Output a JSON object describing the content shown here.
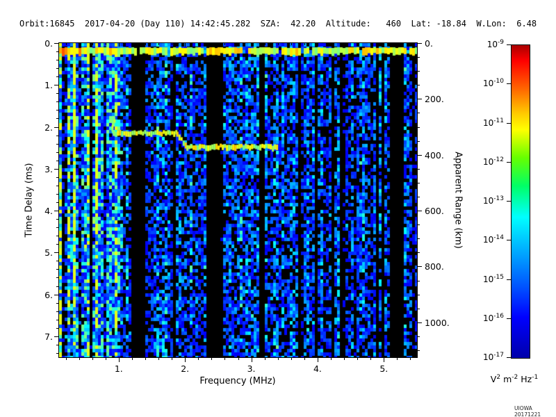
{
  "header": {
    "text": "Orbit:16845  2017-04-20 (Day 110) 14:42:45.282  SZA:  42.20  Altitude:   460  Lat: -18.84  W.Lon:  6.48",
    "orbit": "16845",
    "date": "2017-04-20",
    "day": "110",
    "time": "14:42:45.282",
    "sza": "42.20",
    "altitude": "460",
    "lat": "-18.84",
    "wlon": "6.48"
  },
  "credit": "UIOWA 20171221",
  "chart_data": {
    "type": "heatmap",
    "title": "",
    "xlabel": "Frequency (MHz)",
    "ylabel_left": "Time Delay (ms)",
    "ylabel_right": "Apparent Range (km)",
    "x_range_mhz": [
      0.1,
      5.5
    ],
    "y_range_ms": [
      0,
      7.5
    ],
    "x_ticks": [
      1,
      2,
      3,
      4,
      5
    ],
    "y_ticks_left_ms": [
      0,
      1,
      2,
      3,
      4,
      5,
      6,
      7
    ],
    "y_ticks_right_km": [
      0,
      200,
      400,
      600,
      800,
      1000
    ],
    "range_km_per_ms": 150,
    "grid": false,
    "colorbar": {
      "scale": "log",
      "base": 10,
      "exponents": [
        -9,
        -10,
        -11,
        -12,
        -13,
        -14,
        -15,
        -16,
        -17
      ],
      "unit_parts": [
        [
          "V",
          "2"
        ],
        [
          "m",
          "-2"
        ],
        [
          "Hz",
          "-1"
        ]
      ],
      "top_color": "#ff0000",
      "bottom_color": "#0000aa"
    },
    "features": {
      "noise_seed": 1337,
      "background_color": "#000000",
      "surface_reflection_band": {
        "t_ms": [
          0.1,
          0.3
        ],
        "f_mhz": [
          0.1,
          5.5
        ],
        "u": [
          0.48,
          0.7
        ]
      },
      "ionospheric_echo_trace_segments": [
        {
          "f_mhz": [
            0.91,
            1.87
          ],
          "t_ms": [
            2.12,
            2.12
          ]
        },
        {
          "f_mhz": [
            1.87,
            2.02
          ],
          "t_ms": [
            2.12,
            2.45
          ]
        },
        {
          "f_mhz": [
            2.02,
            3.4
          ],
          "t_ms": [
            2.45,
            2.45
          ]
        }
      ],
      "trace_cusp": {
        "f_mhz": 0.91,
        "t_ms": [
          1.75,
          2.12
        ]
      },
      "plasma_harmonic_lines_mhz": [
        0.13,
        0.22,
        0.32,
        0.42,
        0.55,
        0.68,
        0.8,
        0.95
      ],
      "dark_bands_mhz": [
        [
          1.18,
          1.42
        ],
        [
          2.33,
          2.52
        ],
        [
          3.1,
          3.2
        ],
        [
          5.1,
          5.28
        ]
      ]
    }
  }
}
